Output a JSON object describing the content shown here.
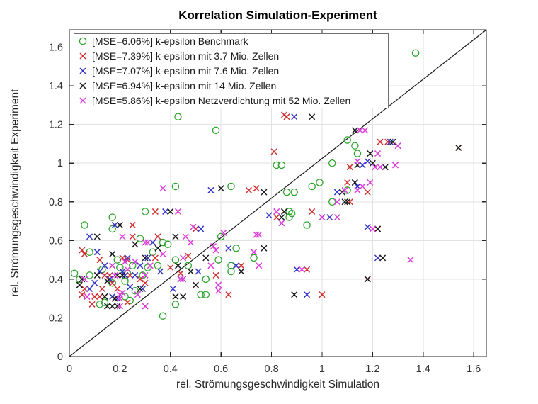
{
  "figure_title": "Korrelation Simulation-Experiment",
  "colors": {
    "background": "#ffffff",
    "axis": "#262626",
    "grid": "#e2e2e2",
    "tick_label": "#333333",
    "legend_border": "#707070",
    "legend_background": "#ffffff",
    "identity_line": "#1a1a1a"
  },
  "chart_data": {
    "type": "scatter",
    "title": "Korrelation Simulation-Experiment",
    "xlabel": "rel. Strömungsgeschwindigkeit Simulation",
    "ylabel": "rel. Strömungsgeschwindigkeit Experiment",
    "xlim": [
      0,
      1.65
    ],
    "ylim": [
      0,
      1.69
    ],
    "xtick_values": [
      0,
      0.2,
      0.4,
      0.6,
      0.8,
      1.0,
      1.2,
      1.4,
      1.6
    ],
    "xtick_labels": [
      "0",
      "0.2",
      "0.4",
      "0.6",
      "0.8",
      "1",
      "1.2",
      "1.4",
      "1.6"
    ],
    "ytick_values": [
      0,
      0.2,
      0.4,
      0.6,
      0.8,
      1.0,
      1.2,
      1.4,
      1.6
    ],
    "ytick_labels": [
      "0",
      "0.2",
      "0.4",
      "0.6",
      "0.8",
      "1",
      "1.2",
      "1.4",
      "1.6"
    ],
    "grid": true,
    "legend_position": "top-left",
    "identity_line": {
      "from": [
        0,
        0
      ],
      "to": [
        1.65,
        1.69
      ]
    },
    "series": [
      {
        "name": "[MSE=6.06%] k-epsilon Benchmark",
        "marker": "circle",
        "color": "#2CA52C",
        "points": [
          [
            0.02,
            0.43
          ],
          [
            0.04,
            0.4
          ],
          [
            0.06,
            0.68
          ],
          [
            0.08,
            0.54
          ],
          [
            0.08,
            0.42
          ],
          [
            0.12,
            0.27
          ],
          [
            0.13,
            0.45
          ],
          [
            0.14,
            0.28
          ],
          [
            0.17,
            0.72
          ],
          [
            0.17,
            0.66
          ],
          [
            0.17,
            0.38
          ],
          [
            0.19,
            0.5
          ],
          [
            0.2,
            0.46
          ],
          [
            0.22,
            0.39
          ],
          [
            0.22,
            0.31
          ],
          [
            0.23,
            0.43
          ],
          [
            0.24,
            0.29
          ],
          [
            0.25,
            0.47
          ],
          [
            0.26,
            0.34
          ],
          [
            0.28,
            0.61
          ],
          [
            0.29,
            0.42
          ],
          [
            0.3,
            0.75
          ],
          [
            0.31,
            0.46
          ],
          [
            0.33,
            0.54
          ],
          [
            0.35,
            0.47
          ],
          [
            0.37,
            0.59
          ],
          [
            0.37,
            0.21
          ],
          [
            0.39,
            0.58
          ],
          [
            0.42,
            0.88
          ],
          [
            0.42,
            0.5
          ],
          [
            0.42,
            0.27
          ],
          [
            0.43,
            1.24
          ],
          [
            0.47,
            0.47
          ],
          [
            0.52,
            0.32
          ],
          [
            0.54,
            0.4
          ],
          [
            0.54,
            0.32
          ],
          [
            0.58,
            1.17
          ],
          [
            0.59,
            0.5
          ],
          [
            0.6,
            0.62
          ],
          [
            0.64,
            0.88
          ],
          [
            0.64,
            0.47
          ],
          [
            0.64,
            0.44
          ],
          [
            0.66,
            0.56
          ],
          [
            0.73,
            0.51
          ],
          [
            0.82,
            0.99
          ],
          [
            0.84,
            0.99
          ],
          [
            0.86,
            0.85
          ],
          [
            0.87,
            0.75
          ],
          [
            0.87,
            0.72
          ],
          [
            0.88,
            0.74
          ],
          [
            0.89,
            0.85
          ],
          [
            0.94,
            0.68
          ],
          [
            0.96,
            0.88
          ],
          [
            0.99,
            0.9
          ],
          [
            1.04,
            1.0
          ],
          [
            1.04,
            0.8
          ],
          [
            1.1,
            1.12
          ],
          [
            1.1,
            0.86
          ],
          [
            1.13,
            1.09
          ],
          [
            1.14,
            1.05
          ],
          [
            1.37,
            1.57
          ]
        ]
      },
      {
        "name": "[MSE=7.39%] k-epsilon mit 3.7 Mio. Zellen",
        "marker": "x",
        "color": "#D03030",
        "points": [
          [
            0.05,
            0.55
          ],
          [
            0.05,
            0.32
          ],
          [
            0.06,
            0.53
          ],
          [
            0.06,
            0.35
          ],
          [
            0.09,
            0.27
          ],
          [
            0.1,
            0.31
          ],
          [
            0.12,
            0.5
          ],
          [
            0.12,
            0.31
          ],
          [
            0.13,
            0.35
          ],
          [
            0.14,
            0.42
          ],
          [
            0.16,
            0.42
          ],
          [
            0.17,
            0.38
          ],
          [
            0.19,
            0.35
          ],
          [
            0.21,
            0.51
          ],
          [
            0.23,
            0.5
          ],
          [
            0.23,
            0.28
          ],
          [
            0.24,
            0.42
          ],
          [
            0.25,
            0.68
          ],
          [
            0.25,
            0.62
          ],
          [
            0.28,
            0.4
          ],
          [
            0.3,
            0.38
          ],
          [
            0.34,
            0.75
          ],
          [
            0.34,
            0.51
          ],
          [
            0.35,
            0.62
          ],
          [
            0.4,
            0.46
          ],
          [
            0.44,
            0.43
          ],
          [
            0.47,
            0.52
          ],
          [
            0.5,
            0.66
          ],
          [
            0.58,
            0.42
          ],
          [
            0.63,
            0.32
          ],
          [
            0.68,
            0.47
          ],
          [
            0.71,
            0.86
          ],
          [
            0.74,
            0.87
          ],
          [
            0.81,
            1.06
          ],
          [
            0.82,
            0.72
          ],
          [
            0.85,
            1.25
          ],
          [
            0.86,
            1.24
          ],
          [
            0.94,
            0.45
          ],
          [
            0.96,
            0.75
          ],
          [
            1.0,
            0.32
          ],
          [
            1.1,
            0.9
          ],
          [
            1.11,
            0.98
          ],
          [
            1.11,
            0.8
          ],
          [
            1.18,
            0.85
          ],
          [
            1.18,
            0.4
          ],
          [
            1.22,
            0.66
          ],
          [
            1.23,
            1.11
          ],
          [
            1.26,
            1.11
          ],
          [
            1.54,
            1.08
          ]
        ]
      },
      {
        "name": "[MSE=7.07%] k-epsilon mit 7.6 Mio. Zellen",
        "marker": "x",
        "color": "#3434C8",
        "points": [
          [
            0.08,
            0.62
          ],
          [
            0.08,
            0.35
          ],
          [
            0.1,
            0.38
          ],
          [
            0.11,
            0.54
          ],
          [
            0.12,
            0.44
          ],
          [
            0.14,
            0.47
          ],
          [
            0.16,
            0.4
          ],
          [
            0.17,
            0.31
          ],
          [
            0.18,
            0.68
          ],
          [
            0.19,
            0.3
          ],
          [
            0.21,
            0.44
          ],
          [
            0.22,
            0.42
          ],
          [
            0.23,
            0.51
          ],
          [
            0.24,
            0.36
          ],
          [
            0.26,
            0.42
          ],
          [
            0.28,
            0.47
          ],
          [
            0.29,
            0.35
          ],
          [
            0.31,
            0.51
          ],
          [
            0.33,
            0.59
          ],
          [
            0.36,
            0.44
          ],
          [
            0.38,
            0.75
          ],
          [
            0.41,
            0.35
          ],
          [
            0.44,
            0.4
          ],
          [
            0.51,
            0.44
          ],
          [
            0.52,
            0.66
          ],
          [
            0.56,
            0.86
          ],
          [
            0.63,
            0.56
          ],
          [
            0.66,
            0.47
          ],
          [
            0.79,
            0.73
          ],
          [
            0.89,
            1.24
          ],
          [
            0.9,
            0.45
          ],
          [
            0.94,
            0.32
          ],
          [
            1.0,
            0.72
          ],
          [
            1.03,
            0.72
          ],
          [
            1.06,
            0.85
          ],
          [
            1.13,
            0.9
          ],
          [
            1.14,
            0.88
          ],
          [
            1.16,
            0.99
          ],
          [
            1.18,
            1.01
          ],
          [
            1.18,
            0.67
          ],
          [
            1.22,
            0.51
          ],
          [
            1.27,
            1.11
          ]
        ]
      },
      {
        "name": "[MSE=6.94%] k-epsilon mit 14 Mio. Zellen",
        "marker": "x",
        "color": "#1A1A1A",
        "points": [
          [
            0.04,
            0.37
          ],
          [
            0.05,
            0.4
          ],
          [
            0.11,
            0.62
          ],
          [
            0.11,
            0.42
          ],
          [
            0.14,
            0.31
          ],
          [
            0.15,
            0.39
          ],
          [
            0.15,
            0.26
          ],
          [
            0.17,
            0.53
          ],
          [
            0.17,
            0.26
          ],
          [
            0.18,
            0.3
          ],
          [
            0.19,
            0.42
          ],
          [
            0.19,
            0.26
          ],
          [
            0.2,
            0.68
          ],
          [
            0.21,
            0.42
          ],
          [
            0.26,
            0.58
          ],
          [
            0.28,
            0.35
          ],
          [
            0.3,
            0.51
          ],
          [
            0.35,
            0.56
          ],
          [
            0.4,
            0.75
          ],
          [
            0.42,
            0.62
          ],
          [
            0.42,
            0.31
          ],
          [
            0.43,
            0.47
          ],
          [
            0.45,
            0.31
          ],
          [
            0.48,
            0.44
          ],
          [
            0.5,
            0.37
          ],
          [
            0.54,
            0.51
          ],
          [
            0.6,
            0.87
          ],
          [
            0.68,
            0.44
          ],
          [
            0.77,
            0.85
          ],
          [
            0.77,
            0.56
          ],
          [
            0.84,
            0.72
          ],
          [
            0.85,
            0.75
          ],
          [
            0.89,
            0.32
          ],
          [
            0.96,
            1.24
          ],
          [
            1.08,
            0.85
          ],
          [
            1.09,
            0.8
          ],
          [
            1.1,
            0.8
          ],
          [
            1.13,
            1.17
          ],
          [
            1.13,
            0.9
          ],
          [
            1.14,
            0.99
          ],
          [
            1.18,
            0.4
          ],
          [
            1.19,
            1.05
          ],
          [
            1.2,
            1.0
          ],
          [
            1.22,
            0.66
          ],
          [
            1.24,
            0.51
          ],
          [
            1.25,
            0.98
          ],
          [
            1.28,
            1.11
          ],
          [
            1.54,
            1.08
          ]
        ]
      },
      {
        "name": "[MSE=5.86%] k-epsilon Netzverdichtung mit 52 Mio. Zellen",
        "marker": "x",
        "color": "#DC3CDC",
        "points": [
          [
            0.06,
            0.4
          ],
          [
            0.07,
            0.31
          ],
          [
            0.17,
            0.47
          ],
          [
            0.18,
            0.42
          ],
          [
            0.2,
            0.32
          ],
          [
            0.2,
            0.3
          ],
          [
            0.2,
            0.26
          ],
          [
            0.21,
            0.62
          ],
          [
            0.21,
            0.33
          ],
          [
            0.22,
            0.49
          ],
          [
            0.23,
            0.45
          ],
          [
            0.26,
            0.49
          ],
          [
            0.27,
            0.32
          ],
          [
            0.3,
            0.59
          ],
          [
            0.3,
            0.42
          ],
          [
            0.3,
            0.26
          ],
          [
            0.31,
            0.59
          ],
          [
            0.32,
            0.47
          ],
          [
            0.37,
            0.87
          ],
          [
            0.37,
            0.53
          ],
          [
            0.43,
            0.75
          ],
          [
            0.44,
            0.4
          ],
          [
            0.45,
            0.51
          ],
          [
            0.45,
            0.4
          ],
          [
            0.46,
            0.62
          ],
          [
            0.48,
            0.59
          ],
          [
            0.49,
            0.67
          ],
          [
            0.56,
            0.47
          ],
          [
            0.57,
            0.57
          ],
          [
            0.58,
            0.55
          ],
          [
            0.59,
            0.37
          ],
          [
            0.59,
            0.34
          ],
          [
            0.61,
            0.64
          ],
          [
            0.73,
            0.54
          ],
          [
            0.74,
            0.63
          ],
          [
            0.75,
            0.63
          ],
          [
            0.75,
            0.47
          ],
          [
            0.82,
            0.75
          ],
          [
            0.84,
            0.69
          ],
          [
            0.92,
            0.45
          ],
          [
            1.0,
            0.72
          ],
          [
            1.06,
            0.8
          ],
          [
            1.06,
            0.72
          ],
          [
            1.09,
            0.86
          ],
          [
            1.14,
            1.01
          ],
          [
            1.14,
            0.86
          ],
          [
            1.15,
            1.17
          ],
          [
            1.16,
            0.88
          ],
          [
            1.17,
            1.17
          ],
          [
            1.19,
            0.9
          ],
          [
            1.2,
            0.66
          ],
          [
            1.21,
            0.98
          ],
          [
            1.22,
            1.05
          ],
          [
            1.23,
            0.98
          ],
          [
            1.29,
            0.99
          ],
          [
            1.3,
            1.09
          ],
          [
            1.35,
            0.5
          ]
        ]
      }
    ]
  }
}
